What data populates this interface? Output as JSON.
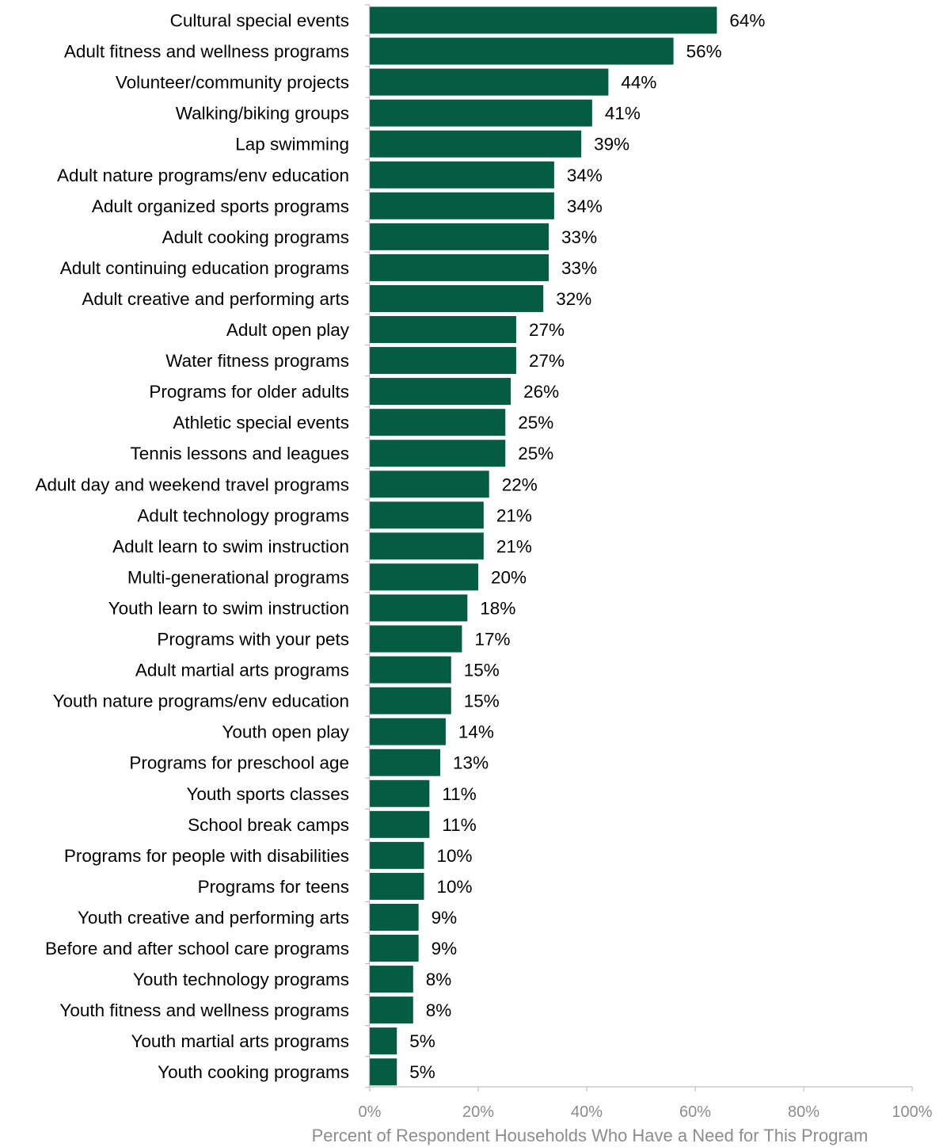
{
  "chart_data": {
    "type": "bar",
    "orientation": "horizontal",
    "categories": [
      "Cultural special events",
      "Adult fitness and wellness programs",
      "Volunteer/community projects",
      "Walking/biking groups",
      "Lap swimming",
      "Adult nature programs/env education",
      "Adult organized sports programs",
      "Adult cooking programs",
      "Adult continuing education programs",
      "Adult creative and performing arts",
      "Adult open play",
      "Water fitness programs",
      "Programs for older adults",
      "Athletic special events",
      "Tennis lessons and leagues",
      "Adult day and weekend travel programs",
      "Adult technology programs",
      "Adult learn to swim instruction",
      "Multi-generational programs",
      "Youth learn to swim instruction",
      "Programs with your pets",
      "Adult martial arts programs",
      "Youth nature programs/env education",
      "Youth open play",
      "Programs for preschool age",
      "Youth sports classes",
      "School break camps",
      "Programs for people with disabilities",
      "Programs for teens",
      "Youth creative and performing arts",
      "Before and after school care programs",
      "Youth technology programs",
      "Youth fitness and wellness programs",
      "Youth martial arts programs",
      "Youth cooking programs"
    ],
    "values": [
      64,
      56,
      44,
      41,
      39,
      34,
      34,
      33,
      33,
      32,
      27,
      27,
      26,
      25,
      25,
      22,
      21,
      21,
      20,
      18,
      17,
      15,
      15,
      14,
      13,
      11,
      11,
      10,
      10,
      9,
      9,
      8,
      8,
      5,
      5
    ],
    "value_labels": [
      "64%",
      "56%",
      "44%",
      "41%",
      "39%",
      "34%",
      "34%",
      "33%",
      "33%",
      "32%",
      "27%",
      "27%",
      "26%",
      "25%",
      "25%",
      "22%",
      "21%",
      "21%",
      "20%",
      "18%",
      "17%",
      "15%",
      "15%",
      "14%",
      "13%",
      "11%",
      "11%",
      "10%",
      "10%",
      "9%",
      "9%",
      "8%",
      "8%",
      "5%",
      "5%"
    ],
    "xlim": [
      0,
      100
    ],
    "xticks": [
      0,
      20,
      40,
      60,
      80,
      100
    ],
    "xtick_labels": [
      "0%",
      "20%",
      "40%",
      "60%",
      "80%",
      "100%"
    ],
    "xlabel": "Percent of Respondent Households Who Have a Need for This Program",
    "grid": false,
    "legend": "none",
    "colors": {
      "bar": "#045c43",
      "axis_line": "#bfbfbf",
      "tick_text": "#8c8c8c",
      "label_text": "#000000"
    }
  }
}
